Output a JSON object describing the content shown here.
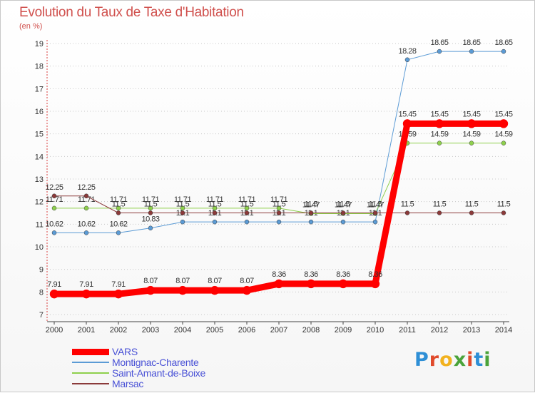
{
  "title": "Evolution du Taux de Taxe d'Habitation",
  "subtitle": "(en %)",
  "logo": {
    "text": "Proxiti",
    "colors": [
      "#2e8fd6",
      "#e04a2b",
      "#f2b21f",
      "#4aa33a",
      "#e04a2b",
      "#2e8fd6",
      "#4aa33a"
    ]
  },
  "chart_data": {
    "type": "line",
    "x": [
      "2000",
      "2001",
      "2002",
      "2003",
      "2004",
      "2005",
      "2006",
      "2007",
      "2008",
      "2009",
      "2010",
      "2011",
      "2012",
      "2013",
      "2014"
    ],
    "ylim": [
      7,
      19
    ],
    "yticks": [
      "7",
      "8",
      "9",
      "10",
      "11",
      "12",
      "13",
      "14",
      "15",
      "16",
      "17",
      "18",
      "19"
    ],
    "grid": "horizontal-dotted",
    "legend_position": "bottom-left",
    "series": [
      {
        "name": "Montignac-Charente",
        "color": "#5b9bd5",
        "width": 1,
        "values": [
          10.62,
          10.62,
          10.62,
          10.83,
          11.1,
          11.1,
          11.1,
          11.1,
          11.1,
          11.1,
          11.1,
          18.28,
          18.65,
          18.65,
          18.65
        ],
        "labels": [
          "10.62",
          "10.62",
          "10.62",
          "10.83",
          "11.1",
          "11.1",
          "11.1",
          "11.1",
          "11.1",
          "11.1",
          "11.1",
          "18.28",
          "18.65",
          "18.65",
          "18.65"
        ]
      },
      {
        "name": "Saint-Amant-de-Boixe",
        "color": "#8ed04c",
        "width": 1,
        "values": [
          11.71,
          11.71,
          11.71,
          11.71,
          11.71,
          11.71,
          11.71,
          11.71,
          11.47,
          11.47,
          11.47,
          14.59,
          14.59,
          14.59,
          14.59
        ],
        "labels": [
          "11.71",
          "11.71",
          "11.71",
          "11.71",
          "11.71",
          "11.71",
          "11.71",
          "11.71",
          "11.47",
          "11.47",
          "11.47",
          "14.59",
          "14.59",
          "14.59",
          "14.59"
        ]
      },
      {
        "name": "Marsac",
        "color": "#8b3a3a",
        "width": 1,
        "values": [
          12.25,
          12.25,
          11.5,
          11.5,
          11.5,
          11.5,
          11.5,
          11.5,
          11.5,
          11.5,
          11.5,
          11.5,
          11.5,
          11.5,
          11.5
        ],
        "labels": [
          "12.25",
          "12.25",
          "11.5",
          "11.5",
          "11.5",
          "11.5",
          "11.5",
          "11.5",
          "11.5",
          "11.5",
          "11.5",
          "11.5",
          "11.5",
          "11.5",
          "11.5"
        ]
      },
      {
        "name": "VARS",
        "color": "#ff0000",
        "width": 9,
        "values": [
          7.91,
          7.91,
          7.91,
          8.07,
          8.07,
          8.07,
          8.07,
          8.36,
          8.36,
          8.36,
          8.36,
          15.45,
          15.45,
          15.45,
          15.45
        ],
        "labels": [
          "7.91",
          "7.91",
          "7.91",
          "8.07",
          "8.07",
          "8.07",
          "8.07",
          "8.36",
          "8.36",
          "8.36",
          "8.36",
          "15.45",
          "15.45",
          "15.45",
          "15.45"
        ]
      }
    ]
  },
  "legend": [
    {
      "name": "VARS",
      "color": "#ff0000",
      "width": 9
    },
    {
      "name": "Montignac-Charente",
      "color": "#5b9bd5",
      "width": 2
    },
    {
      "name": "Saint-Amant-de-Boixe",
      "color": "#8ed04c",
      "width": 2
    },
    {
      "name": "Marsac",
      "color": "#8b3a3a",
      "width": 2
    }
  ]
}
